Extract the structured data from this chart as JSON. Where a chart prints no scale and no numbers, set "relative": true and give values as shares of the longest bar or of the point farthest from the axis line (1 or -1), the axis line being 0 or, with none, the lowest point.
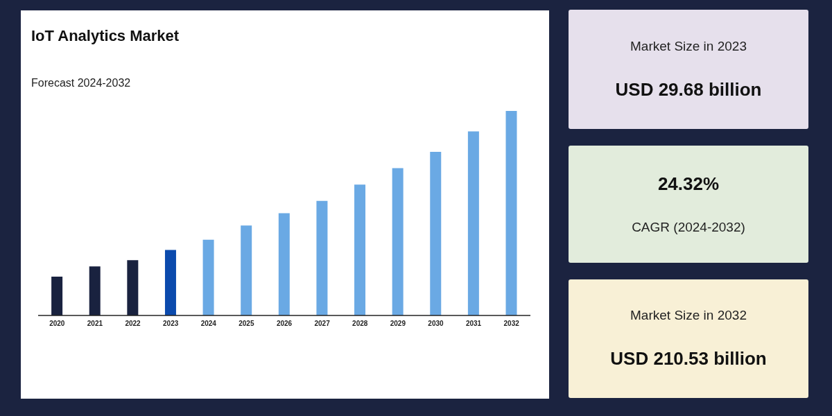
{
  "chart_data": [
    {
      "type": "bar",
      "title": "IoT Analytics Market",
      "subtitle": "Forecast 2024-2032",
      "relative": true,
      "categories": [
        "2020",
        "2021",
        "2022",
        "2023",
        "2024",
        "2025",
        "2026",
        "2027",
        "2028",
        "2029",
        "2030",
        "2031",
        "2032"
      ],
      "values": [
        0.19,
        0.24,
        0.27,
        0.32,
        0.37,
        0.44,
        0.5,
        0.56,
        0.64,
        0.72,
        0.8,
        0.9,
        1
      ],
      "colors": [
        "#19223f",
        "#19223f",
        "#19223f",
        "#0b4aad",
        "#6aa9e4",
        "#6aa9e4",
        "#6aa9e4",
        "#6aa9e4",
        "#6aa9e4",
        "#6aa9e4",
        "#6aa9e4",
        "#6aa9e4",
        "#6aa9e4"
      ],
      "grid": false,
      "legend": false
    },
    {
      "type": "other",
      "title": "USD 29.68 billion",
      "subtitle": "Market Size in 2023"
    },
    {
      "type": "other",
      "title": "24.32%",
      "subtitle": "CAGR (2024-2032)"
    },
    {
      "type": "other",
      "title": "USD 210.53 billion",
      "subtitle": "Market Size in 2032"
    }
  ]
}
